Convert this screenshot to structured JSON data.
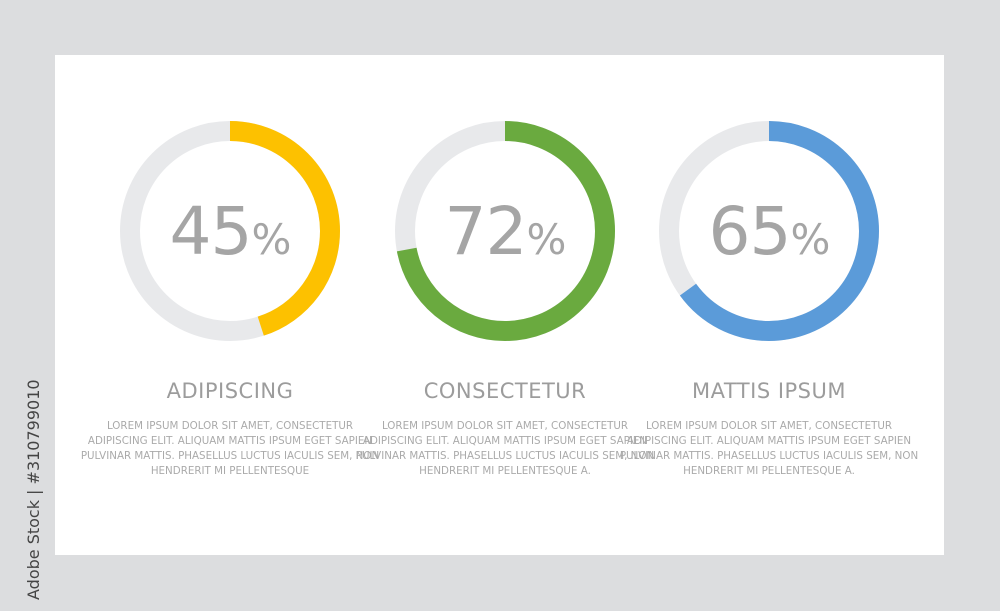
{
  "chart_data": {
    "type": "donut",
    "track_color": "#e8e9eb",
    "items": [
      {
        "title": "ADIPISCING",
        "value": 45,
        "color": "#fdc100",
        "text": "LOREM IPSUM DOLOR SIT AMET, CONSECTETUR ADIPISCING ELIT. ALIQUAM MATTIS IPSUM EGET SAPIEN PULVINAR MATTIS. PHASELLUS LUCTUS IACULIS SEM, NON HENDRERIT MI PELLENTESQUE"
      },
      {
        "title": "CONSECTETUR",
        "value": 72,
        "color": "#6aaa3f",
        "text": "LOREM IPSUM DOLOR SIT AMET, CONSECTETUR ADIPISCING ELIT. ALIQUAM MATTIS IPSUM EGET SAPIEN PULVINAR MATTIS. PHASELLUS LUCTUS IACULIS SEM, NON HENDRERIT MI PELLENTESQUE A."
      },
      {
        "title": "MATTIS IPSUM",
        "value": 65,
        "color": "#5b9bd9",
        "text": "LOREM IPSUM DOLOR SIT AMET, CONSECTETUR ADIPISCING ELIT. ALIQUAM MATTIS IPSUM EGET SAPIEN PULVINAR MATTIS. PHASELLUS LUCTUS IACULIS SEM, NON HENDRERIT MI PELLENTESQUE A."
      }
    ],
    "percent_sign": "%"
  },
  "watermark": "Adobe Stock | #310799010"
}
